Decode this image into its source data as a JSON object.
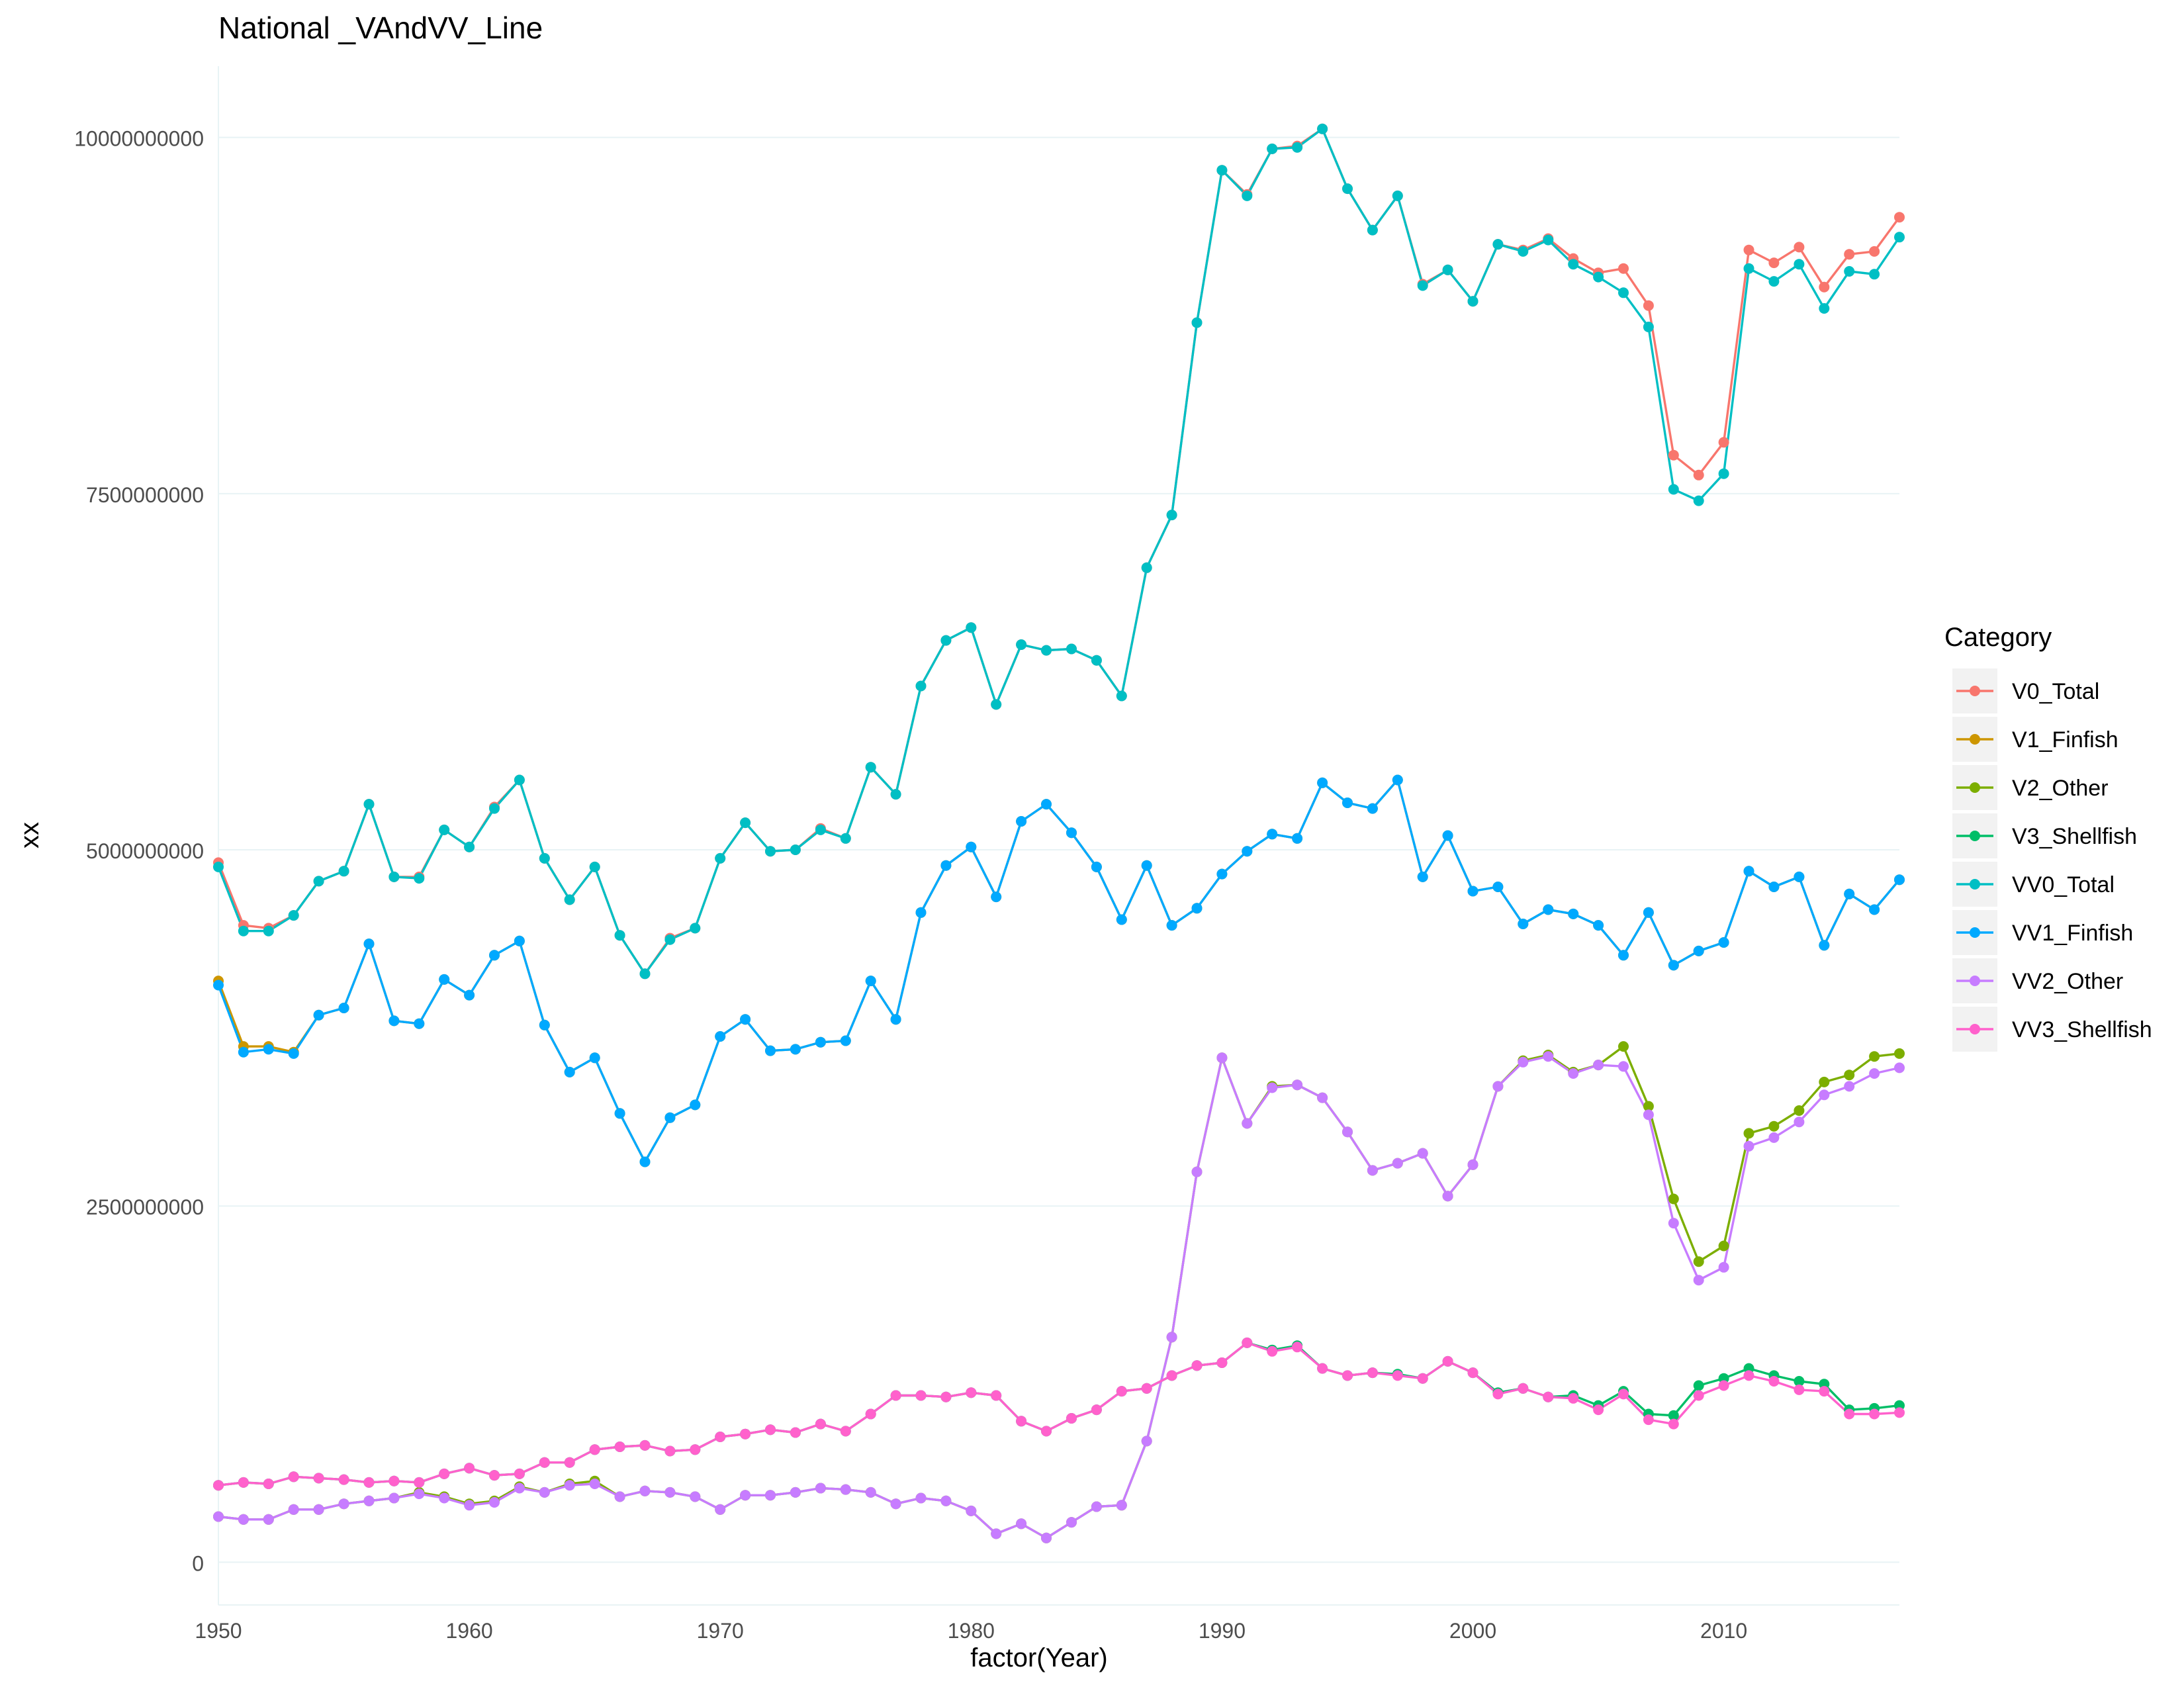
{
  "chart_data": {
    "type": "line",
    "title": "National _VAndVV_Line",
    "xlabel": "factor(Year)",
    "ylabel": "xx",
    "xlim": [
      1950,
      2017
    ],
    "ylim": [
      -300000000,
      10500000000
    ],
    "x_ticks": [
      1950,
      1960,
      1970,
      1980,
      1990,
      2000,
      2010
    ],
    "y_ticks": [
      0,
      2500000000,
      5000000000,
      7500000000,
      10000000000
    ],
    "grid": true,
    "legend_title": "Category",
    "legend_position": "right",
    "x": [
      1950,
      1951,
      1952,
      1953,
      1954,
      1955,
      1956,
      1957,
      1958,
      1959,
      1960,
      1961,
      1962,
      1963,
      1964,
      1965,
      1966,
      1967,
      1968,
      1969,
      1970,
      1971,
      1972,
      1973,
      1974,
      1975,
      1976,
      1977,
      1978,
      1979,
      1980,
      1981,
      1982,
      1983,
      1984,
      1985,
      1986,
      1987,
      1988,
      1989,
      1990,
      1991,
      1992,
      1993,
      1994,
      1995,
      1996,
      1997,
      1998,
      1999,
      2000,
      2001,
      2002,
      2003,
      2004,
      2005,
      2006,
      2007,
      2008,
      2009,
      2010,
      2011,
      2012,
      2013,
      2014,
      2015,
      2016,
      2017
    ],
    "series": [
      {
        "name": "V0_Total",
        "color": "#F8766D",
        "values": [
          4910000000,
          4470000000,
          4450000000,
          4540000000,
          4780000000,
          4850000000,
          5320000000,
          4810000000,
          4810000000,
          5140000000,
          5020000000,
          5300000000,
          5490000000,
          4940000000,
          4650000000,
          4880000000,
          4400000000,
          4130000000,
          4380000000,
          4450000000,
          4940000000,
          5190000000,
          4990000000,
          5000000000,
          5150000000,
          5080000000,
          5580000000,
          5390000000,
          6150000000,
          6470000000,
          6560000000,
          6020000000,
          6440000000,
          6400000000,
          6410000000,
          6330000000,
          6080000000,
          6980000000,
          7350000000,
          8700000000,
          9770000000,
          9600000000,
          9920000000,
          9940000000,
          10060000000,
          9640000000,
          9350000000,
          9590000000,
          8970000000,
          9070000000,
          8850000000,
          9250000000,
          9210000000,
          9290000000,
          9150000000,
          9050000000,
          9080000000,
          8820000000,
          7770000000,
          7630000000,
          7860000000,
          9210000000,
          9120000000,
          9230000000,
          8950000000,
          9180000000,
          9200000000,
          9440000000
        ]
      },
      {
        "name": "V1_Finfish",
        "color": "#CD9600",
        "values": [
          4080000000,
          3620000000,
          3620000000,
          3580000000,
          3840000000,
          3890000000,
          4340000000,
          3800000000,
          3780000000,
          4090000000,
          3980000000,
          4260000000,
          4360000000,
          3770000000,
          3440000000,
          3540000000,
          3150000000,
          2810000000,
          3120000000,
          3210000000,
          3690000000,
          3810000000,
          3590000000,
          3600000000,
          3650000000,
          3660000000,
          4080000000,
          3810000000,
          4560000000,
          4890000000,
          5020000000,
          4670000000,
          5200000000,
          5320000000,
          5120000000,
          4880000000,
          4510000000,
          4890000000,
          4470000000,
          4590000000,
          4830000000,
          4990000000,
          5110000000,
          5080000000,
          5470000000,
          5330000000,
          5290000000,
          5490000000,
          4810000000,
          5100000000,
          4710000000,
          4740000000,
          4480000000,
          4580000000,
          4550000000,
          4470000000,
          4260000000,
          4560000000,
          4190000000,
          4290000000,
          4350000000,
          4850000000,
          4740000000,
          4810000000,
          4330000000,
          4690000000,
          4580000000,
          4790000000
        ]
      },
      {
        "name": "V2_Other",
        "color": "#7CAE00",
        "values": [
          320000000,
          300000000,
          300000000,
          370000000,
          370000000,
          410000000,
          430000000,
          450000000,
          490000000,
          460000000,
          410000000,
          430000000,
          530000000,
          490000000,
          550000000,
          570000000,
          460000000,
          500000000,
          490000000,
          460000000,
          370000000,
          470000000,
          470000000,
          490000000,
          520000000,
          510000000,
          490000000,
          410000000,
          450000000,
          430000000,
          360000000,
          200000000,
          270000000,
          170000000,
          280000000,
          390000000,
          400000000,
          850000000,
          1580000000,
          2740000000,
          3540000000,
          3080000000,
          3340000000,
          3350000000,
          3260000000,
          3020000000,
          2750000000,
          2800000000,
          2870000000,
          2570000000,
          2790000000,
          3340000000,
          3520000000,
          3560000000,
          3440000000,
          3490000000,
          3620000000,
          3200000000,
          2550000000,
          2110000000,
          2220000000,
          3010000000,
          3060000000,
          3170000000,
          3370000000,
          3420000000,
          3550000000,
          3570000000
        ]
      },
      {
        "name": "V3_Shellfish",
        "color": "#00BE67",
        "values": [
          540000000,
          560000000,
          550000000,
          600000000,
          590000000,
          580000000,
          560000000,
          570000000,
          560000000,
          620000000,
          660000000,
          610000000,
          620000000,
          700000000,
          700000000,
          790000000,
          810000000,
          820000000,
          780000000,
          790000000,
          880000000,
          900000000,
          930000000,
          910000000,
          970000000,
          920000000,
          1040000000,
          1170000000,
          1170000000,
          1160000000,
          1190000000,
          1170000000,
          990000000,
          920000000,
          1010000000,
          1070000000,
          1200000000,
          1220000000,
          1310000000,
          1380000000,
          1400000000,
          1540000000,
          1490000000,
          1520000000,
          1360000000,
          1310000000,
          1330000000,
          1320000000,
          1290000000,
          1410000000,
          1330000000,
          1190000000,
          1220000000,
          1160000000,
          1170000000,
          1100000000,
          1200000000,
          1040000000,
          1030000000,
          1240000000,
          1290000000,
          1360000000,
          1310000000,
          1270000000,
          1250000000,
          1070000000,
          1080000000,
          1100000000
        ]
      },
      {
        "name": "VV0_Total",
        "color": "#00BFC4",
        "values": [
          4880000000,
          4430000000,
          4430000000,
          4540000000,
          4780000000,
          4850000000,
          5320000000,
          4810000000,
          4800000000,
          5140000000,
          5020000000,
          5290000000,
          5490000000,
          4940000000,
          4650000000,
          4880000000,
          4400000000,
          4130000000,
          4370000000,
          4450000000,
          4940000000,
          5190000000,
          4990000000,
          5000000000,
          5140000000,
          5080000000,
          5580000000,
          5390000000,
          6150000000,
          6470000000,
          6560000000,
          6020000000,
          6440000000,
          6400000000,
          6410000000,
          6330000000,
          6080000000,
          6980000000,
          7350000000,
          8700000000,
          9770000000,
          9590000000,
          9920000000,
          9930000000,
          10060000000,
          9640000000,
          9350000000,
          9590000000,
          8960000000,
          9070000000,
          8850000000,
          9250000000,
          9200000000,
          9280000000,
          9110000000,
          9020000000,
          8910000000,
          8670000000,
          7530000000,
          7450000000,
          7640000000,
          9080000000,
          8990000000,
          9110000000,
          8800000000,
          9060000000,
          9040000000,
          9300000000
        ]
      },
      {
        "name": "VV1_Finfish",
        "color": "#00A9FF",
        "values": [
          4050000000,
          3580000000,
          3600000000,
          3570000000,
          3840000000,
          3890000000,
          4340000000,
          3800000000,
          3780000000,
          4090000000,
          3980000000,
          4260000000,
          4360000000,
          3770000000,
          3440000000,
          3540000000,
          3150000000,
          2810000000,
          3120000000,
          3210000000,
          3690000000,
          3810000000,
          3590000000,
          3600000000,
          3650000000,
          3660000000,
          4080000000,
          3810000000,
          4560000000,
          4890000000,
          5020000000,
          4670000000,
          5200000000,
          5320000000,
          5120000000,
          4880000000,
          4510000000,
          4890000000,
          4470000000,
          4590000000,
          4830000000,
          4990000000,
          5110000000,
          5080000000,
          5470000000,
          5330000000,
          5290000000,
          5490000000,
          4810000000,
          5100000000,
          4710000000,
          4740000000,
          4480000000,
          4580000000,
          4550000000,
          4470000000,
          4260000000,
          4560000000,
          4190000000,
          4290000000,
          4350000000,
          4850000000,
          4740000000,
          4810000000,
          4330000000,
          4690000000,
          4580000000,
          4790000000
        ]
      },
      {
        "name": "VV2_Other",
        "color": "#C77CFF",
        "values": [
          320000000,
          300000000,
          300000000,
          370000000,
          370000000,
          410000000,
          430000000,
          450000000,
          480000000,
          450000000,
          400000000,
          420000000,
          520000000,
          490000000,
          540000000,
          550000000,
          460000000,
          500000000,
          490000000,
          460000000,
          370000000,
          470000000,
          470000000,
          490000000,
          520000000,
          510000000,
          490000000,
          410000000,
          450000000,
          430000000,
          360000000,
          200000000,
          270000000,
          170000000,
          280000000,
          390000000,
          400000000,
          850000000,
          1580000000,
          2740000000,
          3540000000,
          3080000000,
          3330000000,
          3350000000,
          3260000000,
          3020000000,
          2750000000,
          2800000000,
          2870000000,
          2570000000,
          2790000000,
          3340000000,
          3510000000,
          3550000000,
          3430000000,
          3490000000,
          3480000000,
          3140000000,
          2380000000,
          1980000000,
          2070000000,
          2920000000,
          2980000000,
          3090000000,
          3280000000,
          3340000000,
          3430000000,
          3470000000
        ]
      },
      {
        "name": "VV3_Shellfish",
        "color": "#FF61CC",
        "values": [
          540000000,
          560000000,
          550000000,
          600000000,
          590000000,
          580000000,
          560000000,
          570000000,
          560000000,
          620000000,
          660000000,
          610000000,
          620000000,
          700000000,
          700000000,
          790000000,
          810000000,
          820000000,
          780000000,
          790000000,
          880000000,
          900000000,
          930000000,
          910000000,
          970000000,
          920000000,
          1040000000,
          1170000000,
          1170000000,
          1160000000,
          1190000000,
          1170000000,
          990000000,
          920000000,
          1010000000,
          1070000000,
          1200000000,
          1220000000,
          1310000000,
          1380000000,
          1400000000,
          1540000000,
          1480000000,
          1510000000,
          1360000000,
          1310000000,
          1330000000,
          1310000000,
          1290000000,
          1410000000,
          1330000000,
          1180000000,
          1220000000,
          1160000000,
          1150000000,
          1070000000,
          1180000000,
          1000000000,
          970000000,
          1170000000,
          1240000000,
          1310000000,
          1270000000,
          1210000000,
          1200000000,
          1040000000,
          1040000000,
          1050000000
        ]
      }
    ]
  }
}
